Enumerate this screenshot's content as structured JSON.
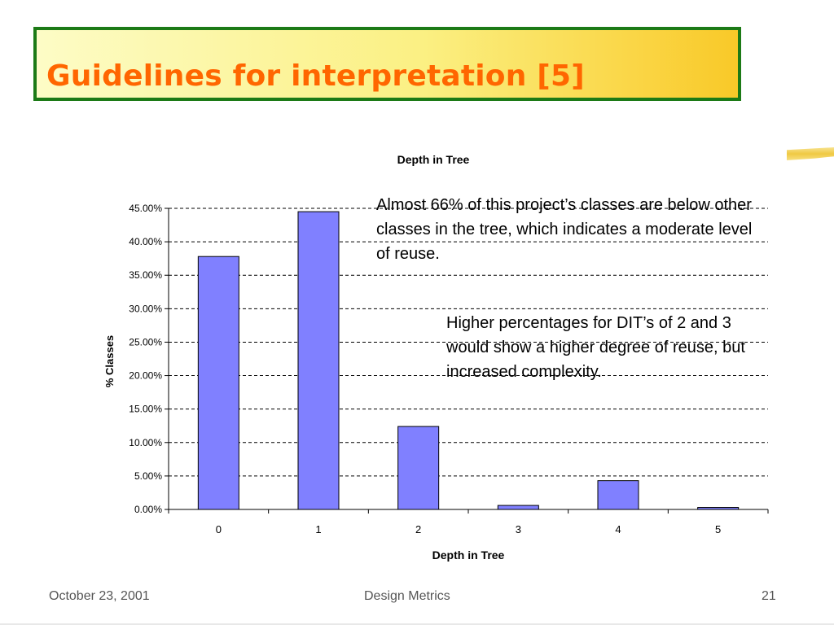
{
  "slide": {
    "title": "Guidelines for interpretation [5]"
  },
  "annotations": {
    "note1": "Almost 66% of this project’s classes are below other classes in the tree, which indicates a moderate level of reuse.",
    "note2": "Higher percentages for DIT’s of 2 and 3 would show a higher degree of reuse, but increased complexity."
  },
  "footer": {
    "date": "October 23, 2001",
    "title": "Design Metrics",
    "page": "21"
  },
  "colors": {
    "title_text": "#ff6600",
    "title_border": "#1c7a16",
    "bar_fill": "#8080ff"
  },
  "chart_data": {
    "type": "bar",
    "title": "Depth in Tree",
    "xlabel": "Depth in Tree",
    "ylabel": "% Classes",
    "categories": [
      "0",
      "1",
      "2",
      "3",
      "4",
      "5"
    ],
    "values": [
      37.8,
      44.5,
      12.4,
      0.6,
      4.3,
      0.3
    ],
    "ylim": [
      0,
      45
    ],
    "yticks": [
      {
        "value": 0,
        "label": "0.00%"
      },
      {
        "value": 5,
        "label": "5.00%"
      },
      {
        "value": 10,
        "label": "10.00%"
      },
      {
        "value": 15,
        "label": "15.00%"
      },
      {
        "value": 20,
        "label": "20.00%"
      },
      {
        "value": 25,
        "label": "25.00%"
      },
      {
        "value": 30,
        "label": "30.00%"
      },
      {
        "value": 35,
        "label": "35.00%"
      },
      {
        "value": 40,
        "label": "40.00%"
      },
      {
        "value": 45,
        "label": "45.00%"
      }
    ],
    "grid": true,
    "legend": "none"
  }
}
